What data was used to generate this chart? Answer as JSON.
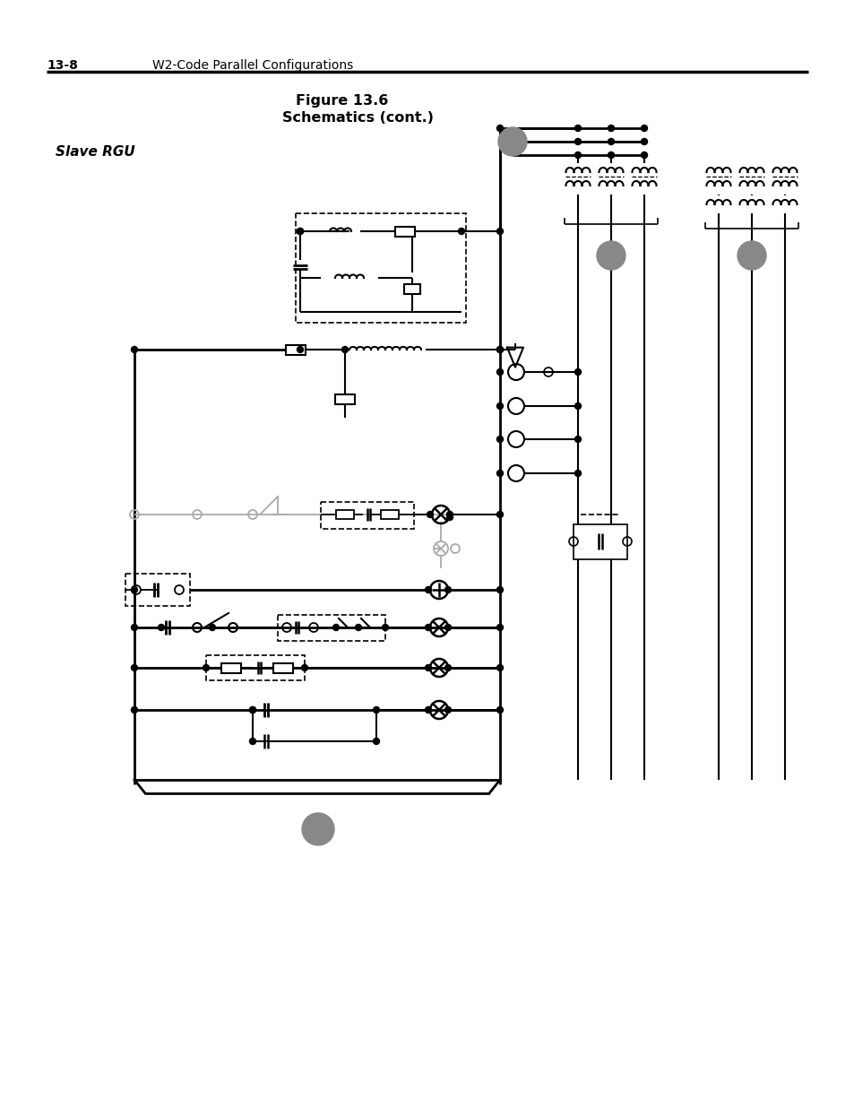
{
  "page_number": "13-8",
  "header_text": "W2-Code Parallel Configurations",
  "title_line1": "Figure 13.6",
  "title_line2": "Schematics (cont.)",
  "slave_rgu_label": "Slave RGU",
  "bg_color": "#ffffff",
  "gray_fill": "#888888",
  "lw_thick": 2.0,
  "lw_med": 1.5,
  "lw_thin": 1.2
}
